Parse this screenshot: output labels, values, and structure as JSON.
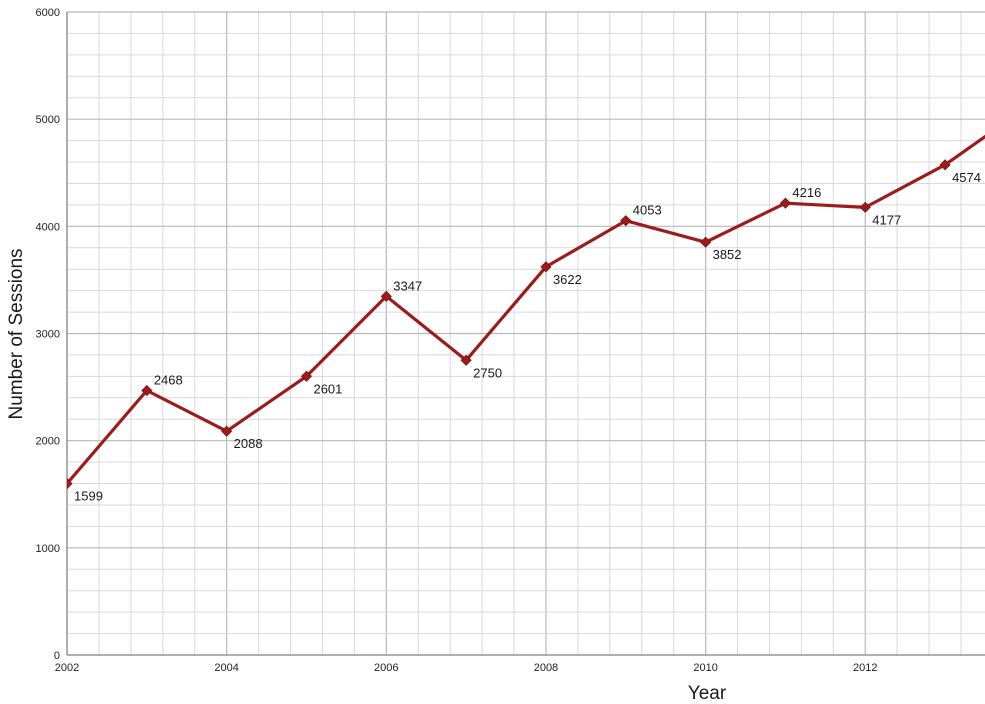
{
  "chart_data": {
    "type": "line",
    "title": "",
    "xlabel": "Year",
    "ylabel": "Number of Sessions",
    "xlim": [
      2002,
      2013.5
    ],
    "ylim": [
      0,
      6000
    ],
    "x_ticks": [
      2002,
      2004,
      2006,
      2008,
      2010,
      2012
    ],
    "x_tick_labels": [
      "2002",
      "2004",
      "2006",
      "2008",
      "2010",
      "2012"
    ],
    "y_ticks": [
      0,
      1000,
      2000,
      3000,
      4000,
      5000,
      6000
    ],
    "y_tick_labels": [
      "0",
      "1000",
      "2000",
      "3000",
      "4000",
      "5000",
      "6000"
    ],
    "grid": true,
    "legend": "none",
    "series": [
      {
        "x": [
          2002,
          2003,
          2004,
          2005,
          2006,
          2007,
          2008,
          2009,
          2010,
          2011,
          2012,
          2013,
          2014
        ],
        "values": [
          1599,
          2468,
          2088,
          2601,
          3347,
          2750,
          3622,
          4053,
          3852,
          4216,
          4177,
          4574,
          5100
        ],
        "labels": [
          "1599",
          "2468",
          "2088",
          "2601",
          "3347",
          "2750",
          "3622",
          "4053",
          "3852",
          "4216",
          "4177",
          "4574",
          ""
        ]
      }
    ],
    "colors": {
      "line": "#9c1c1c",
      "marker": "#9c1c1c",
      "major_grid": "#b8b8b8",
      "minor_grid": "#d9d9d9"
    }
  }
}
